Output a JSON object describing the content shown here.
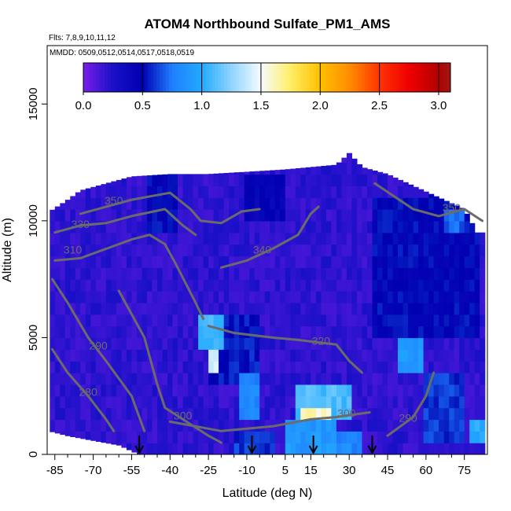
{
  "chart_data": {
    "type": "heatmap",
    "title": "ATOM4 Northbound Sulfate_PM1_AMS",
    "flights_label": "Flts: 7,8,9,10,11,12",
    "dates_label": "MMDD: 0509,0512,0514,0517,0518,0519",
    "xlabel": "Latitude (deg N)",
    "ylabel": "Altitude (m)",
    "xlim": [
      -88,
      84
    ],
    "ylim": [
      0,
      17500
    ],
    "x_ticks": [
      -85,
      -70,
      -55,
      -40,
      -25,
      -10,
      5,
      15,
      30,
      45,
      60,
      75
    ],
    "x_tick_labels": [
      "-85",
      "-70",
      "-55",
      "-40",
      "-25",
      "-10",
      "5",
      "15",
      "30",
      "45",
      "60",
      "75"
    ],
    "y_ticks": [
      0,
      5000,
      10000,
      15000
    ],
    "y_tick_labels": [
      "0",
      "5000",
      "10000",
      "15000"
    ],
    "colorbar": {
      "range": [
        0,
        3.1
      ],
      "ticks": [
        0,
        0.5,
        1,
        1.5,
        2,
        2.5,
        3
      ],
      "tick_labels": [
        "0.0",
        "0.5",
        "1.0",
        "1.5",
        "2.0",
        "2.5",
        "3.0"
      ],
      "stops": [
        {
          "v": 0.0,
          "color": "#7a1fe8"
        },
        {
          "v": 0.25,
          "color": "#1a10c8"
        },
        {
          "v": 0.5,
          "color": "#0000b0"
        },
        {
          "v": 0.75,
          "color": "#1f7fff"
        },
        {
          "v": 1.0,
          "color": "#22aaff"
        },
        {
          "v": 1.25,
          "color": "#8fd4ff"
        },
        {
          "v": 1.5,
          "color": "#f5fbff"
        },
        {
          "v": 1.75,
          "color": "#ffee66"
        },
        {
          "v": 2.0,
          "color": "#ffc000"
        },
        {
          "v": 2.25,
          "color": "#ff8c00"
        },
        {
          "v": 2.5,
          "color": "#ff3300"
        },
        {
          "v": 2.75,
          "color": "#ee0000"
        },
        {
          "v": 3.0,
          "color": "#b30000"
        },
        {
          "v": 3.1,
          "color": "#a01818"
        }
      ]
    },
    "upper_boundary": [
      [
        -87,
        10400
      ],
      [
        -80,
        10900
      ],
      [
        -75,
        11300
      ],
      [
        -65,
        11600
      ],
      [
        -55,
        11900
      ],
      [
        -40,
        12000
      ],
      [
        -25,
        12000
      ],
      [
        -10,
        12100
      ],
      [
        5,
        12200
      ],
      [
        15,
        12300
      ],
      [
        25,
        12400
      ],
      [
        30,
        12900
      ],
      [
        35,
        12300
      ],
      [
        45,
        12000
      ],
      [
        55,
        11500
      ],
      [
        65,
        11000
      ],
      [
        75,
        10500
      ],
      [
        80,
        9500
      ],
      [
        83,
        9500
      ]
    ],
    "lower_boundary": [
      [
        -87,
        1000
      ],
      [
        -80,
        800
      ],
      [
        -70,
        600
      ],
      [
        -60,
        400
      ],
      [
        -52,
        0
      ],
      [
        80,
        0
      ],
      [
        83,
        0
      ]
    ],
    "background_value": 0.2,
    "high_patches": [
      {
        "lat": [
          -48,
          -38
        ],
        "alt": [
          9500,
          11800
        ],
        "value": 0.5
      },
      {
        "lat": [
          -10,
          5
        ],
        "alt": [
          10000,
          12000
        ],
        "value": 0.45
      },
      {
        "lat": [
          40,
          80
        ],
        "alt": [
          5000,
          11000
        ],
        "value": 0.5
      },
      {
        "lat": [
          -25,
          -5
        ],
        "alt": [
          3000,
          6000
        ],
        "value": 0.55
      },
      {
        "lat": [
          -25,
          -22
        ],
        "alt": [
          3500,
          4500
        ],
        "value": 1.4
      },
      {
        "lat": [
          -28,
          -20
        ],
        "alt": [
          4500,
          5800
        ],
        "value": 1.1
      },
      {
        "lat": [
          -12,
          -5
        ],
        "alt": [
          1500,
          3500
        ],
        "value": 0.8
      },
      {
        "lat": [
          10,
          30
        ],
        "alt": [
          1500,
          3000
        ],
        "value": 1.1
      },
      {
        "lat": [
          12,
          22
        ],
        "alt": [
          1500,
          2000
        ],
        "value": 1.6
      },
      {
        "lat": [
          5,
          25
        ],
        "alt": [
          200,
          1500
        ],
        "value": 0.9
      },
      {
        "lat": [
          18,
          35
        ],
        "alt": [
          0,
          800
        ],
        "value": 0.8
      },
      {
        "lat": [
          -15,
          0
        ],
        "alt": [
          0,
          800
        ],
        "value": 0.6
      },
      {
        "lat": [
          50,
          58
        ],
        "alt": [
          3500,
          5000
        ],
        "value": 0.9
      },
      {
        "lat": [
          60,
          75
        ],
        "alt": [
          500,
          3500
        ],
        "value": 0.6
      },
      {
        "lat": [
          78,
          82
        ],
        "alt": [
          500,
          1500
        ],
        "value": 1.0
      },
      {
        "lat": [
          68,
          74
        ],
        "alt": [
          9500,
          10500
        ],
        "value": 0.7
      }
    ],
    "contours": [
      {
        "label": "350",
        "label_at": [
          -62,
          10700
        ],
        "points": [
          [
            -75,
            10300
          ],
          [
            -65,
            10600
          ],
          [
            -55,
            10900
          ],
          [
            -40,
            11200
          ],
          [
            -32,
            10500
          ],
          [
            -28,
            10000
          ],
          [
            -20,
            9900
          ],
          [
            -12,
            10400
          ],
          [
            -5,
            10500
          ]
        ]
      },
      {
        "label": "350",
        "label_at": [
          70,
          10400
        ],
        "points": [
          [
            40,
            11600
          ],
          [
            55,
            10500
          ],
          [
            65,
            10200
          ],
          [
            75,
            10500
          ],
          [
            82,
            10000
          ]
        ]
      },
      {
        "label": "340",
        "label_at": [
          -4,
          8600
        ],
        "points": [
          [
            -20,
            8000
          ],
          [
            -10,
            8300
          ],
          [
            0,
            8800
          ],
          [
            10,
            9400
          ],
          [
            15,
            10300
          ],
          [
            18,
            10600
          ]
        ]
      },
      {
        "label": "330",
        "label_at": [
          -75,
          9700
        ],
        "points": [
          [
            -85,
            9500
          ],
          [
            -75,
            9800
          ],
          [
            -65,
            9900
          ],
          [
            -55,
            10200
          ],
          [
            -42,
            10500
          ],
          [
            -35,
            9800
          ],
          [
            -30,
            9400
          ]
        ]
      },
      {
        "label": "320",
        "label_at": [
          19,
          4700
        ],
        "points": [
          [
            -25,
            5500
          ],
          [
            -15,
            5200
          ],
          [
            0,
            5000
          ],
          [
            10,
            4900
          ],
          [
            25,
            4700
          ],
          [
            30,
            4000
          ],
          [
            35,
            3500
          ]
        ]
      },
      {
        "label": "310",
        "label_at": [
          -78,
          8600
        ],
        "points": [
          [
            -85,
            8300
          ],
          [
            -75,
            8400
          ],
          [
            -65,
            8800
          ],
          [
            -55,
            9200
          ],
          [
            -48,
            9400
          ],
          [
            -42,
            9000
          ],
          [
            -38,
            8200
          ],
          [
            -30,
            6500
          ],
          [
            -27,
            5800
          ]
        ]
      },
      {
        "label": "300",
        "label_at": [
          29,
          1600
        ],
        "points": [
          [
            -40,
            1400
          ],
          [
            -30,
            1200
          ],
          [
            -20,
            1000
          ],
          [
            0,
            1200
          ],
          [
            15,
            1500
          ],
          [
            25,
            1600
          ],
          [
            38,
            1800
          ]
        ]
      },
      {
        "label": "300",
        "label_at": [
          -35,
          1500
        ],
        "points": [
          [
            -60,
            7000
          ],
          [
            -50,
            5000
          ],
          [
            -45,
            3000
          ],
          [
            -42,
            2000
          ],
          [
            -35,
            1500
          ],
          [
            -25,
            800
          ],
          [
            -20,
            500
          ]
        ]
      },
      {
        "label": "290",
        "label_at": [
          -68,
          4500
        ],
        "points": [
          [
            -86,
            7500
          ],
          [
            -80,
            6500
          ],
          [
            -72,
            5000
          ],
          [
            -65,
            4000
          ],
          [
            -55,
            2500
          ],
          [
            -50,
            1000
          ]
        ]
      },
      {
        "label": "290",
        "label_at": [
          53,
          1400
        ],
        "points": [
          [
            45,
            800
          ],
          [
            50,
            1200
          ],
          [
            55,
            1600
          ],
          [
            60,
            2500
          ],
          [
            63,
            3500
          ]
        ]
      },
      {
        "label": "280",
        "label_at": [
          -72,
          2500
        ],
        "points": [
          [
            -86,
            4500
          ],
          [
            -80,
            3500
          ],
          [
            -72,
            2500
          ],
          [
            -65,
            1500
          ],
          [
            -62,
            1000
          ]
        ]
      }
    ],
    "arrows_lat": [
      -52,
      -8,
      16,
      39
    ]
  }
}
